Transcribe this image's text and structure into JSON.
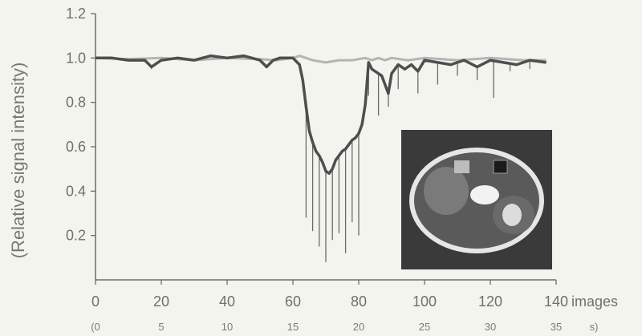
{
  "chart_data": {
    "type": "line",
    "ylabel": "(Relative signal intensity)",
    "ylim": [
      0.0,
      1.2
    ],
    "xlim": [
      0,
      140
    ],
    "yticks": [
      "0.2",
      "0.4",
      "0.6",
      "0.8",
      "1.0",
      "1.2"
    ],
    "xticks": [
      "0",
      "20",
      "40",
      "60",
      "80",
      "100",
      "120",
      "140"
    ],
    "x_unit": "images",
    "secondary_xticks": [
      "(0",
      "5",
      "10",
      "15",
      "20",
      "25",
      "30",
      "35",
      "s)"
    ],
    "grid": false,
    "legend": "none",
    "series": [
      {
        "color": "#b4b4b4",
        "x": [
          0,
          10,
          20,
          30,
          40,
          50,
          55,
          60,
          62,
          64,
          66,
          68,
          70,
          72,
          74,
          76,
          78,
          80,
          82,
          84,
          86,
          88,
          90,
          95,
          100,
          110,
          120,
          130,
          137
        ],
        "values": [
          1.0,
          0.995,
          1.0,
          0.99,
          1.0,
          0.995,
          0.99,
          1.0,
          1.01,
          1.0,
          0.99,
          0.985,
          0.98,
          0.985,
          0.99,
          0.99,
          0.99,
          0.995,
          1.0,
          0.99,
          1.0,
          0.99,
          1.0,
          0.99,
          1.0,
          0.99,
          1.0,
          0.99,
          0.99
        ]
      },
      {
        "color": "#4e4e4e",
        "x": [
          0,
          5,
          10,
          15,
          17,
          20,
          25,
          30,
          35,
          40,
          45,
          50,
          52,
          54,
          56,
          60,
          62,
          63,
          64,
          65,
          66,
          67,
          68,
          69,
          70,
          71,
          72,
          73,
          74,
          75,
          76,
          77,
          78,
          79,
          80,
          81,
          82,
          83,
          84,
          85,
          86,
          87,
          88,
          89,
          90,
          92,
          94,
          96,
          98,
          100,
          104,
          108,
          112,
          116,
          120,
          124,
          128,
          132,
          137
        ],
        "values": [
          1.0,
          1.0,
          0.99,
          0.99,
          0.96,
          0.99,
          1.0,
          0.99,
          1.01,
          1.0,
          1.01,
          0.99,
          0.96,
          0.99,
          1.0,
          1.0,
          0.97,
          0.9,
          0.78,
          0.67,
          0.62,
          0.58,
          0.56,
          0.53,
          0.49,
          0.48,
          0.5,
          0.54,
          0.56,
          0.58,
          0.59,
          0.61,
          0.63,
          0.64,
          0.66,
          0.7,
          0.79,
          0.98,
          0.95,
          0.94,
          0.93,
          0.92,
          0.88,
          0.84,
          0.93,
          0.97,
          0.95,
          0.97,
          0.94,
          0.99,
          0.98,
          0.97,
          0.99,
          0.96,
          0.99,
          0.98,
          0.97,
          0.99,
          0.98
        ]
      }
    ],
    "spikes": [
      {
        "x": 17,
        "y": 0.95
      },
      {
        "x": 52,
        "y": 0.96
      },
      {
        "x": 64,
        "y": 0.28
      },
      {
        "x": 66,
        "y": 0.22
      },
      {
        "x": 68,
        "y": 0.15
      },
      {
        "x": 70,
        "y": 0.08
      },
      {
        "x": 72,
        "y": 0.18
      },
      {
        "x": 74,
        "y": 0.21
      },
      {
        "x": 76,
        "y": 0.12
      },
      {
        "x": 78,
        "y": 0.26
      },
      {
        "x": 80,
        "y": 0.2
      },
      {
        "x": 83,
        "y": 0.83
      },
      {
        "x": 86,
        "y": 0.74
      },
      {
        "x": 89,
        "y": 0.78
      },
      {
        "x": 92,
        "y": 0.86
      },
      {
        "x": 98,
        "y": 0.84
      },
      {
        "x": 104,
        "y": 0.88
      },
      {
        "x": 110,
        "y": 0.92
      },
      {
        "x": 116,
        "y": 0.9
      },
      {
        "x": 121,
        "y": 0.82
      },
      {
        "x": 126,
        "y": 0.94
      },
      {
        "x": 132,
        "y": 0.95
      }
    ]
  }
}
